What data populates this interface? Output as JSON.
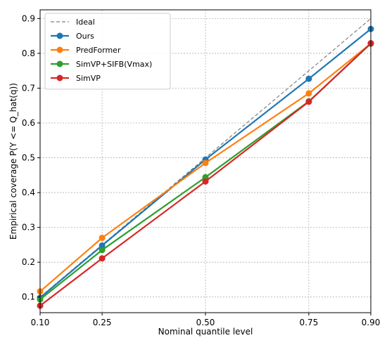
{
  "chart_data": {
    "type": "line",
    "title": "",
    "xlabel": "Nominal quantile level",
    "ylabel": "Empirical coverage  P(Y <= Q_hat(q))",
    "x": [
      0.1,
      0.25,
      0.5,
      0.75,
      0.9
    ],
    "x_tick_labels": [
      "0.10",
      "0.25",
      "0.50",
      "0.75",
      "0.90"
    ],
    "y_ticks": [
      0.1,
      0.2,
      0.3,
      0.4,
      0.5,
      0.6,
      0.7,
      0.8,
      0.9
    ],
    "y_tick_labels": [
      "0.1",
      "0.2",
      "0.3",
      "0.4",
      "0.5",
      "0.6",
      "0.7",
      "0.8",
      "0.9"
    ],
    "xlim": [
      0.1,
      0.9
    ],
    "ylim": [
      0.055,
      0.925
    ],
    "grid": true,
    "grid_style": "dotted",
    "legend_position": "top-left",
    "series": [
      {
        "name": "Ideal",
        "values": [
          0.1,
          0.25,
          0.5,
          0.75,
          0.9
        ],
        "color": "#808080",
        "dashed": true,
        "markers": false
      },
      {
        "name": "Ours",
        "values": [
          0.098,
          0.248,
          0.495,
          0.727,
          0.87
        ],
        "color": "#1f77b4",
        "dashed": false,
        "markers": true
      },
      {
        "name": "PredFormer",
        "values": [
          0.116,
          0.27,
          0.485,
          0.685,
          0.828
        ],
        "color": "#ff7f0e",
        "dashed": false,
        "markers": true
      },
      {
        "name": "SimVP+SIFB(Vmax)",
        "values": [
          0.093,
          0.235,
          0.444,
          0.662,
          0.828
        ],
        "color": "#2ca02c",
        "dashed": false,
        "markers": true
      },
      {
        "name": "SimVP",
        "values": [
          0.075,
          0.211,
          0.432,
          0.661,
          0.829
        ],
        "color": "#d62728",
        "dashed": false,
        "markers": true
      }
    ]
  }
}
